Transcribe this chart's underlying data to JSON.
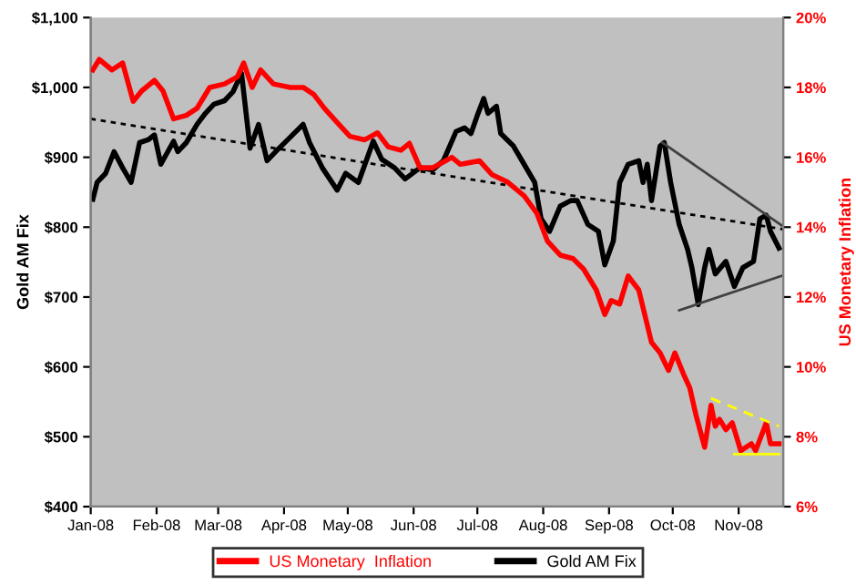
{
  "chart_data": {
    "type": "line",
    "xlabel": null,
    "ylabel": "Gold AM Fix",
    "y2label": "US Monetary Inflation",
    "xlim": [
      "2008-01-01",
      "2008-11-22"
    ],
    "xticks": [
      {
        "value": "2008-01-01",
        "label": "Jan-08"
      },
      {
        "value": "2008-02-01",
        "label": "Feb-08"
      },
      {
        "value": "2008-03-01",
        "label": "Mar-08"
      },
      {
        "value": "2008-04-01",
        "label": "Apr-08"
      },
      {
        "value": "2008-05-01",
        "label": "May-08"
      },
      {
        "value": "2008-06-01",
        "label": "Jun-08"
      },
      {
        "value": "2008-07-01",
        "label": "Jul-08"
      },
      {
        "value": "2008-08-01",
        "label": "Aug-08"
      },
      {
        "value": "2008-09-01",
        "label": "Sep-08"
      },
      {
        "value": "2008-10-01",
        "label": "Oct-08"
      },
      {
        "value": "2008-11-01",
        "label": "Nov-08"
      }
    ],
    "ylim": [
      400,
      1100
    ],
    "yticks": [
      {
        "value": 400,
        "label": "$400"
      },
      {
        "value": 500,
        "label": "$500"
      },
      {
        "value": 600,
        "label": "$600"
      },
      {
        "value": 700,
        "label": "$700"
      },
      {
        "value": 800,
        "label": "$800"
      },
      {
        "value": 900,
        "label": "$900"
      },
      {
        "value": 1000,
        "label": "$1,000"
      },
      {
        "value": 1100,
        "label": "$1,100"
      }
    ],
    "y2lim": [
      6,
      20
    ],
    "y2ticks": [
      {
        "value": 6,
        "label": "6%"
      },
      {
        "value": 8,
        "label": "8%"
      },
      {
        "value": 10,
        "label": "10%"
      },
      {
        "value": 12,
        "label": "12%"
      },
      {
        "value": 14,
        "label": "14%"
      },
      {
        "value": 16,
        "label": "16%"
      },
      {
        "value": 18,
        "label": "18%"
      },
      {
        "value": 20,
        "label": "20%"
      }
    ],
    "grid": false,
    "legend": "bottom",
    "marker": "none",
    "series": [
      {
        "type": "line",
        "line_style": "dotted",
        "color": "#000000",
        "x": [
          "2008-01-01",
          "2008-11-22"
        ],
        "values": [
          955,
          797
        ]
      },
      {
        "type": "line",
        "line_style": "solid",
        "color": "#404040",
        "x": [
          "2008-09-26",
          "2008-11-22"
        ],
        "values": [
          921,
          801
        ]
      },
      {
        "type": "line",
        "line_style": "solid",
        "color": "#404040",
        "x": [
          "2008-10-04",
          "2008-11-22"
        ],
        "values": [
          681,
          731
        ]
      },
      {
        "type": "line",
        "line_style": "dashed",
        "color": "#ffff00",
        "axis": "y2",
        "x": [
          "2008-10-19",
          "2008-11-20"
        ],
        "values": [
          9.1,
          8.3
        ]
      },
      {
        "type": "line",
        "line_style": "solid",
        "color": "#ffff00",
        "axis": "y2",
        "x": [
          "2008-10-30",
          "2008-11-20"
        ],
        "values": [
          7.5,
          7.5
        ]
      },
      {
        "line_style": "solid",
        "name": "US Monetary  Inflation",
        "color": "#ff0000",
        "axis": "y2",
        "x": [
          "2008-01-02",
          "2008-01-05",
          "2008-01-11",
          "2008-01-16",
          "2008-01-21",
          "2008-01-25",
          "2008-01-31",
          "2008-02-04",
          "2008-02-09",
          "2008-02-15",
          "2008-02-20",
          "2008-02-26",
          "2008-03-04",
          "2008-03-10",
          "2008-03-13",
          "2008-03-17",
          "2008-03-21",
          "2008-03-27",
          "2008-04-04",
          "2008-04-10",
          "2008-04-15",
          "2008-04-20",
          "2008-04-26",
          "2008-05-02",
          "2008-05-09",
          "2008-05-15",
          "2008-05-20",
          "2008-05-26",
          "2008-05-30",
          "2008-06-04",
          "2008-06-10",
          "2008-06-16",
          "2008-06-19",
          "2008-06-23",
          "2008-07-02",
          "2008-07-08",
          "2008-07-15",
          "2008-07-23",
          "2008-07-29",
          "2008-08-03",
          "2008-08-09",
          "2008-08-15",
          "2008-08-20",
          "2008-08-26",
          "2008-08-30",
          "2008-09-02",
          "2008-09-06",
          "2008-09-10",
          "2008-09-15",
          "2008-09-21",
          "2008-09-25",
          "2008-09-29",
          "2008-10-02",
          "2008-10-06",
          "2008-10-09",
          "2008-10-12",
          "2008-10-16",
          "2008-10-19",
          "2008-10-21",
          "2008-10-23",
          "2008-10-26",
          "2008-10-29",
          "2008-11-02",
          "2008-11-07",
          "2008-11-09",
          "2008-11-14",
          "2008-11-16",
          "2008-11-20"
        ],
        "values": [
          18.5,
          18.8,
          18.5,
          18.7,
          17.6,
          17.9,
          18.2,
          17.9,
          17.1,
          17.2,
          17.4,
          18.0,
          18.1,
          18.3,
          18.7,
          18.0,
          18.5,
          18.1,
          18.0,
          18.0,
          17.8,
          17.4,
          17.0,
          16.6,
          16.5,
          16.7,
          16.3,
          16.2,
          16.4,
          15.7,
          15.7,
          15.9,
          16.0,
          15.8,
          15.9,
          15.5,
          15.3,
          14.9,
          14.4,
          13.6,
          13.2,
          13.1,
          12.8,
          12.2,
          11.5,
          11.9,
          11.8,
          12.6,
          12.2,
          10.7,
          10.4,
          9.9,
          10.4,
          9.8,
          9.4,
          8.6,
          7.7,
          8.9,
          8.3,
          8.5,
          8.2,
          8.4,
          7.6,
          7.8,
          7.6,
          8.4,
          7.8,
          7.8
        ]
      },
      {
        "line_style": "solid",
        "name": "Gold AM Fix",
        "color": "#000000",
        "x": [
          "2008-01-02",
          "2008-01-04",
          "2008-01-08",
          "2008-01-12",
          "2008-01-16",
          "2008-01-20",
          "2008-01-24",
          "2008-01-28",
          "2008-01-31",
          "2008-02-03",
          "2008-02-09",
          "2008-02-11",
          "2008-02-15",
          "2008-02-20",
          "2008-02-24",
          "2008-02-28",
          "2008-03-04",
          "2008-03-08",
          "2008-03-12",
          "2008-03-16",
          "2008-03-20",
          "2008-03-24",
          "2008-03-29",
          "2008-04-04",
          "2008-04-10",
          "2008-04-13",
          "2008-04-19",
          "2008-04-26",
          "2008-04-30",
          "2008-05-06",
          "2008-05-13",
          "2008-05-17",
          "2008-05-23",
          "2008-05-28",
          "2008-06-04",
          "2008-06-10",
          "2008-06-15",
          "2008-06-18",
          "2008-06-21",
          "2008-06-25",
          "2008-06-28",
          "2008-07-01",
          "2008-07-04",
          "2008-07-06",
          "2008-07-10",
          "2008-07-12",
          "2008-07-18",
          "2008-07-23",
          "2008-07-28",
          "2008-07-31",
          "2008-08-04",
          "2008-08-09",
          "2008-08-14",
          "2008-08-17",
          "2008-08-22",
          "2008-08-27",
          "2008-08-30",
          "2008-09-03",
          "2008-09-06",
          "2008-09-10",
          "2008-09-15",
          "2008-09-17",
          "2008-09-19",
          "2008-09-21",
          "2008-09-25",
          "2008-09-27",
          "2008-09-30",
          "2008-10-04",
          "2008-10-08",
          "2008-10-10",
          "2008-10-13",
          "2008-10-16",
          "2008-10-18",
          "2008-10-21",
          "2008-10-26",
          "2008-10-30",
          "2008-11-03",
          "2008-11-08",
          "2008-11-11",
          "2008-11-14",
          "2008-11-16",
          "2008-11-20"
        ],
        "values": [
          840,
          864,
          877,
          908,
          885,
          864,
          921,
          925,
          932,
          890,
          923,
          908,
          921,
          947,
          963,
          976,
          981,
          994,
          1020,
          913,
          947,
          895,
          911,
          929,
          947,
          921,
          885,
          853,
          877,
          864,
          923,
          897,
          885,
          869,
          885,
          882,
          895,
          916,
          937,
          942,
          934,
          960,
          984,
          963,
          973,
          934,
          916,
          890,
          864,
          812,
          794,
          830,
          838,
          838,
          804,
          794,
          746,
          780,
          864,
          890,
          895,
          864,
          890,
          838,
          916,
          921,
          864,
          804,
          768,
          742,
          689,
          742,
          768,
          733,
          751,
          715,
          742,
          751,
          812,
          817,
          794,
          770
        ]
      }
    ]
  }
}
